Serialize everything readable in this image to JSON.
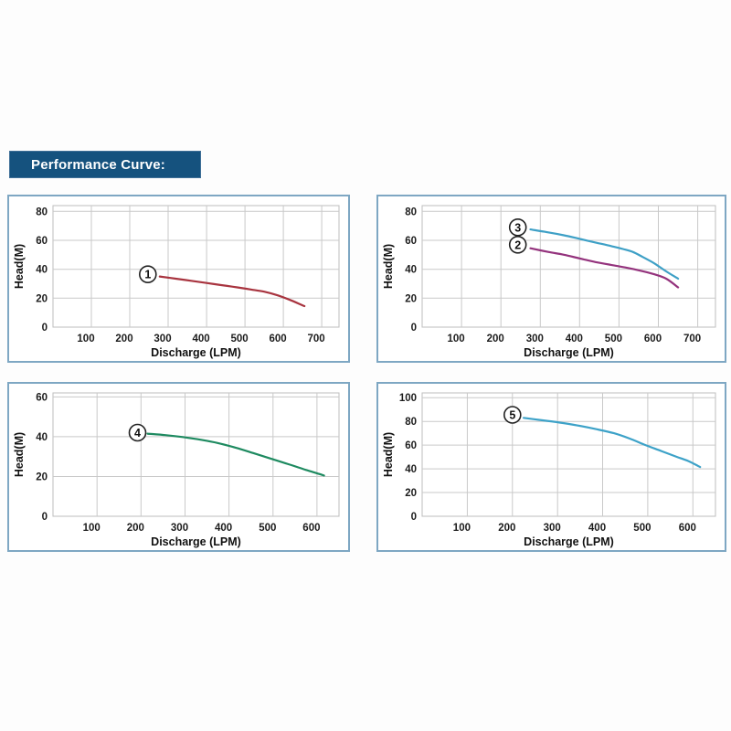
{
  "header": {
    "title": "Performance Curve:",
    "bg_color": "#15527E",
    "text_color": "#ffffff"
  },
  "colors": {
    "panel_border": "#7ea7c3",
    "grid": "#c9c9c9",
    "plot_border": "#bdbdbd",
    "label_circle_stroke": "#222222"
  },
  "chart_data": [
    {
      "id": "top-left",
      "type": "line",
      "title": "",
      "xlabel": "Discharge (LPM)",
      "ylabel": "Head(M)",
      "xlim": [
        0,
        745
      ],
      "ylim": [
        0,
        84
      ],
      "xticks": [
        100,
        200,
        300,
        400,
        500,
        600,
        700
      ],
      "yticks": [
        0,
        20,
        40,
        60,
        80
      ],
      "grid": true,
      "series": [
        {
          "name": "1",
          "color": "#A8343F",
          "label_at": [
            247,
            36.5
          ],
          "points": [
            [
              278,
              35
            ],
            [
              320,
              33.5
            ],
            [
              360,
              32
            ],
            [
              400,
              30.5
            ],
            [
              440,
              29
            ],
            [
              480,
              27.5
            ],
            [
              515,
              26
            ],
            [
              550,
              24.5
            ],
            [
              585,
              22
            ],
            [
              620,
              18.5
            ],
            [
              655,
              14.5
            ]
          ]
        }
      ]
    },
    {
      "id": "top-right",
      "type": "line",
      "title": "",
      "xlabel": "Discharge (LPM)",
      "ylabel": "Head(M)",
      "xlim": [
        0,
        745
      ],
      "ylim": [
        0,
        84
      ],
      "xticks": [
        100,
        200,
        300,
        400,
        500,
        600,
        700
      ],
      "yticks": [
        0,
        20,
        40,
        60,
        80
      ],
      "grid": true,
      "series": [
        {
          "name": "2",
          "color": "#94337D",
          "label_at": [
            243,
            57
          ],
          "points": [
            [
              275,
              54.5
            ],
            [
              320,
              52
            ],
            [
              360,
              50
            ],
            [
              400,
              47.5
            ],
            [
              440,
              45
            ],
            [
              480,
              43
            ],
            [
              520,
              41
            ],
            [
              555,
              39
            ],
            [
              590,
              36.5
            ],
            [
              620,
              33.5
            ],
            [
              650,
              27.5
            ]
          ]
        },
        {
          "name": "3",
          "color": "#3EA0C6",
          "label_at": [
            243,
            69
          ],
          "points": [
            [
              275,
              67.5
            ],
            [
              320,
              65.5
            ],
            [
              360,
              63.5
            ],
            [
              400,
              61
            ],
            [
              440,
              58.5
            ],
            [
              480,
              56
            ],
            [
              510,
              54
            ],
            [
              535,
              52
            ],
            [
              560,
              48.5
            ],
            [
              590,
              44
            ],
            [
              620,
              38.5
            ],
            [
              650,
              33.5
            ]
          ]
        }
      ]
    },
    {
      "id": "bottom-left",
      "type": "line",
      "title": "",
      "xlabel": "Discharge (LPM)",
      "ylabel": "Head(M)",
      "xlim": [
        0,
        650
      ],
      "ylim": [
        0,
        62
      ],
      "xticks": [
        100,
        200,
        300,
        400,
        500,
        600
      ],
      "yticks": [
        0,
        20,
        40,
        60
      ],
      "grid": true,
      "series": [
        {
          "name": "4",
          "color": "#1E8A60",
          "label_at": [
            192,
            42
          ],
          "points": [
            [
              215,
              41.5
            ],
            [
              255,
              40.8
            ],
            [
              295,
              39.8
            ],
            [
              335,
              38.5
            ],
            [
              375,
              36.8
            ],
            [
              415,
              34.5
            ],
            [
              455,
              31.8
            ],
            [
              495,
              29
            ],
            [
              535,
              26.2
            ],
            [
              575,
              23.3
            ],
            [
              616,
              20.5
            ]
          ]
        }
      ]
    },
    {
      "id": "bottom-right",
      "type": "line",
      "title": "",
      "xlabel": "Discharge (LPM)",
      "ylabel": "Head(M)",
      "xlim": [
        0,
        650
      ],
      "ylim": [
        0,
        104
      ],
      "xticks": [
        100,
        200,
        300,
        400,
        500,
        600
      ],
      "yticks": [
        0,
        20,
        40,
        60,
        80,
        100
      ],
      "grid": true,
      "series": [
        {
          "name": "5",
          "color": "#3DA2C8",
          "label_at": [
            200,
            85.5
          ],
          "points": [
            [
              225,
              83
            ],
            [
              265,
              81
            ],
            [
              305,
              79
            ],
            [
              345,
              76.5
            ],
            [
              385,
              73.5
            ],
            [
              425,
              70
            ],
            [
              460,
              65.5
            ],
            [
              495,
              60
            ],
            [
              530,
              55
            ],
            [
              565,
              50
            ],
            [
              590,
              46.5
            ],
            [
              616,
              41.5
            ]
          ]
        }
      ]
    }
  ]
}
